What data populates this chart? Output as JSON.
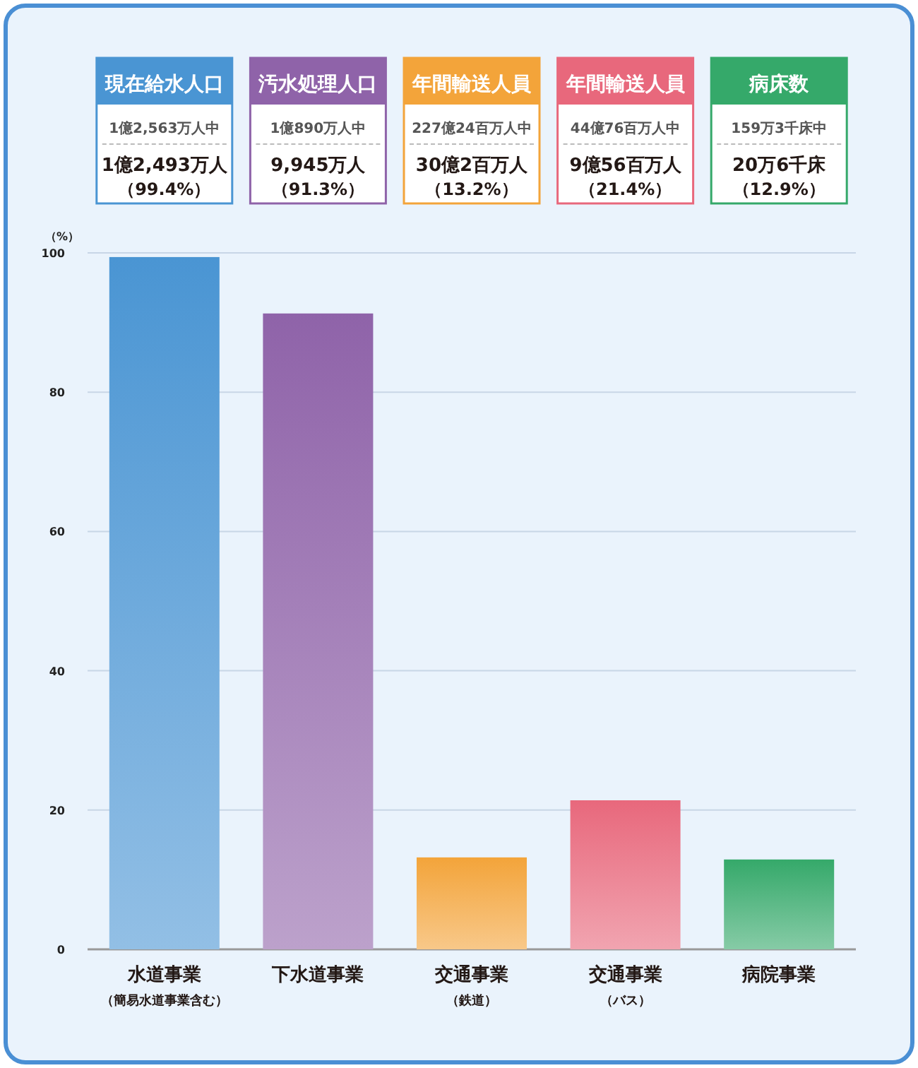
{
  "chart_data": {
    "type": "bar",
    "categories": [
      "水道事業（簡易水道事業含む）",
      "下水道事業",
      "交通事業（鉄道）",
      "交通事業（バス）",
      "病院事業"
    ],
    "values": [
      99.4,
      91.3,
      13.2,
      21.4,
      12.9
    ],
    "colors": [
      "#4a95d3",
      "#8f63a9",
      "#f3a43a",
      "#e8687c",
      "#35a96a"
    ],
    "value_labels": [
      "（99.4%）",
      "（91.3%）",
      "（13.2%）",
      "（21.4%）",
      "（12.9%）"
    ],
    "ylabel": "（%）",
    "ylim": [
      0,
      100
    ],
    "yticks": [
      0,
      20,
      40,
      60,
      80,
      100
    ],
    "grid": "y",
    "annotations": [
      "現在給水人口",
      "1億2,563万人中",
      "1億2,493万人",
      "汚水処理人口",
      "1億890万人中",
      "9,945万人",
      "年間輸送人員",
      "227億24百万人中",
      "30億2百万人",
      "年間輸送人員",
      "44億76百万人中",
      "9億56百万人",
      "病床数",
      "159万3千床中",
      "20万6千床"
    ]
  }
}
